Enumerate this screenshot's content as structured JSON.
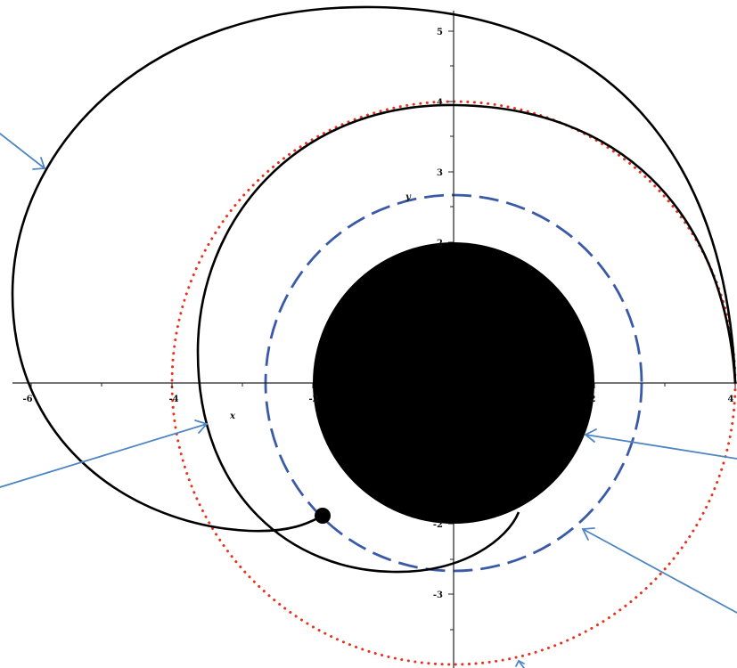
{
  "axes": {
    "x_name": "x",
    "y_name": "y",
    "x_ticks": [
      "-6",
      "-4",
      "-2",
      "2",
      "4"
    ],
    "y_ticks": [
      "5",
      "4",
      "3",
      "2",
      "-2",
      "-3"
    ]
  },
  "colors": {
    "orbit": "#000000",
    "black_hole": "#000000",
    "photon_sphere": "#3a5aa8",
    "outer_circle": "#e8301c",
    "arrows": "#4f86c2",
    "axes": "#222222"
  },
  "diagram": {
    "black_hole_radius": 2,
    "dashed_circle_radius": 2.7,
    "dotted_circle_radius": 4,
    "orbit_start": [
      4,
      0
    ],
    "orbit_end": [
      -1.9,
      -1.9
    ]
  }
}
